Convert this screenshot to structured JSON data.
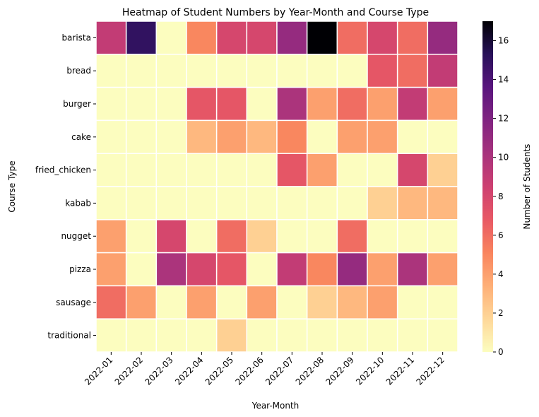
{
  "chart_data": {
    "type": "heatmap",
    "title": "Heatmap of Student Numbers by Year-Month and Course Type",
    "xlabel": "Year-Month",
    "ylabel": "Course Type",
    "colorbar_label": "Number of Students",
    "colormap": "magma_r",
    "vmin": 0,
    "vmax": 17,
    "colorbar_ticks": [
      "0",
      "2",
      "4",
      "6",
      "8",
      "10",
      "12",
      "14",
      "16"
    ],
    "x_categories": [
      "2022-01",
      "2022-02",
      "2022-03",
      "2022-04",
      "2022-05",
      "2022-06",
      "2022-07",
      "2022-08",
      "2022-09",
      "2022-10",
      "2022-11",
      "2022-12"
    ],
    "y_categories": [
      "barista",
      "bread",
      "burger",
      "cake",
      "fried_chicken",
      "kabab",
      "nugget",
      "pizza",
      "sausage",
      "traditional"
    ],
    "values": [
      [
        9,
        15,
        0,
        5,
        8,
        8,
        11,
        17,
        6,
        8,
        6,
        11
      ],
      [
        0,
        0,
        0,
        0,
        0,
        0,
        0,
        0,
        0,
        7,
        6,
        9
      ],
      [
        0,
        0,
        0,
        7,
        7,
        0,
        10,
        4,
        6,
        4,
        9,
        4
      ],
      [
        0,
        0,
        0,
        3,
        4,
        3,
        5,
        0,
        4,
        4,
        0,
        0
      ],
      [
        0,
        0,
        0,
        0,
        0,
        0,
        7,
        4,
        0,
        0,
        8,
        2
      ],
      [
        0,
        0,
        0,
        0,
        0,
        0,
        0,
        0,
        0,
        2,
        3,
        3
      ],
      [
        4,
        0,
        8,
        0,
        6,
        2,
        0,
        0,
        6,
        0,
        0,
        0
      ],
      [
        4,
        0,
        10,
        8,
        7,
        0,
        9,
        5,
        11,
        4,
        10,
        4
      ],
      [
        6,
        4,
        0,
        4,
        0,
        4,
        0,
        2,
        3,
        4,
        0,
        0
      ],
      [
        0,
        0,
        0,
        0,
        2,
        0,
        0,
        0,
        0,
        0,
        0,
        0
      ]
    ]
  }
}
